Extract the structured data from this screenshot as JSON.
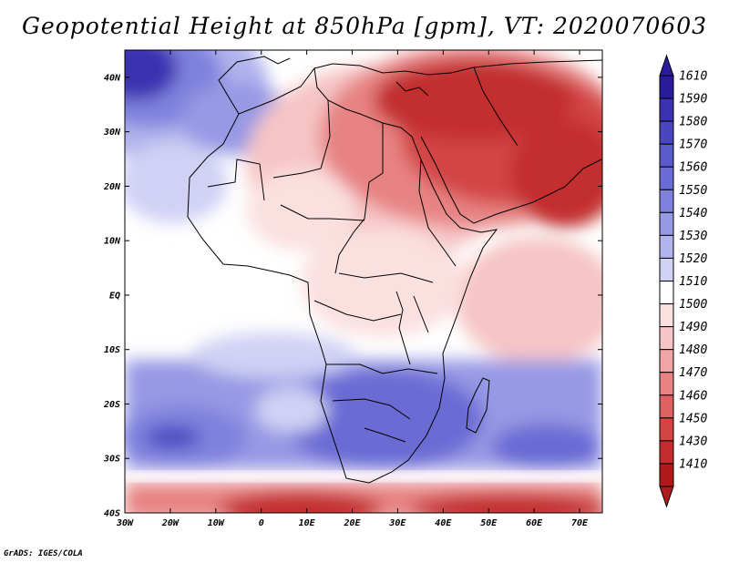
{
  "title": "Geopotential Height at 850hPa [gpm], VT: 2020070603",
  "credit": "GrADS: IGES/COLA",
  "map": {
    "region": "Africa and Middle East",
    "lon_range": [
      -30,
      75
    ],
    "lat_range": [
      -40,
      45
    ],
    "lon_ticks": [
      {
        "lon": -30,
        "label": "30W"
      },
      {
        "lon": -20,
        "label": "20W"
      },
      {
        "lon": -10,
        "label": "10W"
      },
      {
        "lon": 0,
        "label": "0"
      },
      {
        "lon": 10,
        "label": "10E"
      },
      {
        "lon": 20,
        "label": "20E"
      },
      {
        "lon": 30,
        "label": "30E"
      },
      {
        "lon": 40,
        "label": "40E"
      },
      {
        "lon": 50,
        "label": "50E"
      },
      {
        "lon": 60,
        "label": "60E"
      },
      {
        "lon": 70,
        "label": "70E"
      }
    ],
    "lat_ticks": [
      {
        "lat": 40,
        "label": "40N"
      },
      {
        "lat": 30,
        "label": "30N"
      },
      {
        "lat": 20,
        "label": "20N"
      },
      {
        "lat": 10,
        "label": "10N"
      },
      {
        "lat": 0,
        "label": "EQ"
      },
      {
        "lat": -10,
        "label": "10S"
      },
      {
        "lat": -20,
        "label": "20S"
      },
      {
        "lat": -30,
        "label": "30S"
      },
      {
        "lat": -40,
        "label": "40S"
      }
    ]
  },
  "colorbar": {
    "levels": [
      {
        "label": "1610",
        "color": "#2a1a9c"
      },
      {
        "label": "1590",
        "color": "#3a32b0"
      },
      {
        "label": "1580",
        "color": "#4a46c0"
      },
      {
        "label": "1570",
        "color": "#5a5acb"
      },
      {
        "label": "1560",
        "color": "#6b6cd4"
      },
      {
        "label": "1550",
        "color": "#7f82dd"
      },
      {
        "label": "1540",
        "color": "#9699e4"
      },
      {
        "label": "1530",
        "color": "#b1b3ec"
      },
      {
        "label": "1520",
        "color": "#d0d1f4"
      },
      {
        "label": "1510",
        "color": "#ffffff"
      },
      {
        "label": "1500",
        "color": "#fbe0e0"
      },
      {
        "label": "1490",
        "color": "#f6c5c5"
      },
      {
        "label": "1480",
        "color": "#efa5a5"
      },
      {
        "label": "1470",
        "color": "#e78383"
      },
      {
        "label": "1460",
        "color": "#de6262"
      },
      {
        "label": "1450",
        "color": "#d34545"
      },
      {
        "label": "1430",
        "color": "#c32d2d"
      },
      {
        "label": "1410",
        "color": "#b01a1a"
      }
    ]
  }
}
